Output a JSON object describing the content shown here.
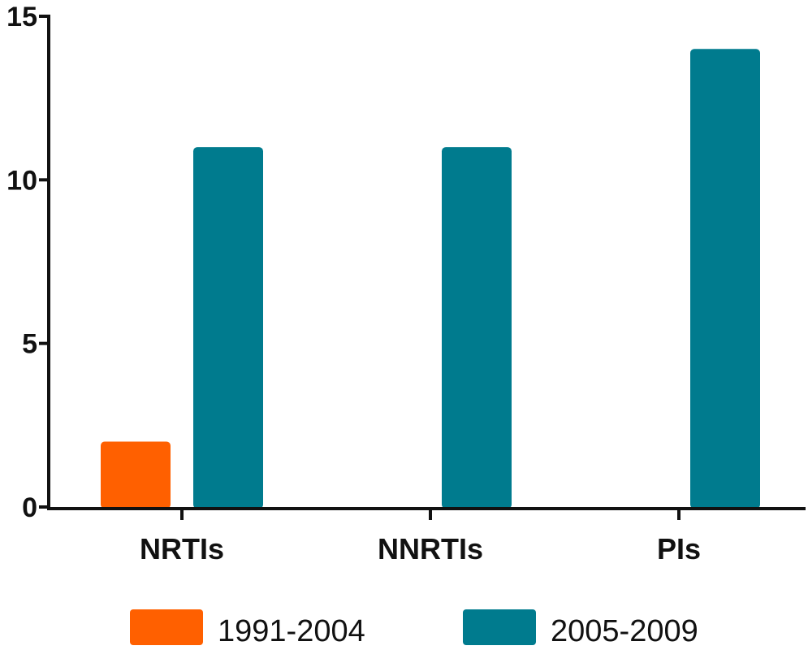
{
  "chart_data": {
    "type": "bar",
    "categories": [
      "NRTIs",
      "NNRTIs",
      "PIs"
    ],
    "series": [
      {
        "name": "1991-2004",
        "values": [
          2,
          0,
          0
        ],
        "color": "#ff6000"
      },
      {
        "name": "2005-2009",
        "values": [
          11,
          11,
          14
        ],
        "color": "#007b8e"
      }
    ],
    "title": "",
    "xlabel": "",
    "ylabel": "",
    "ylim": [
      0,
      15
    ],
    "yticks": [
      "0",
      "5",
      "10",
      "15"
    ],
    "grid": false,
    "legend": "bottom"
  }
}
